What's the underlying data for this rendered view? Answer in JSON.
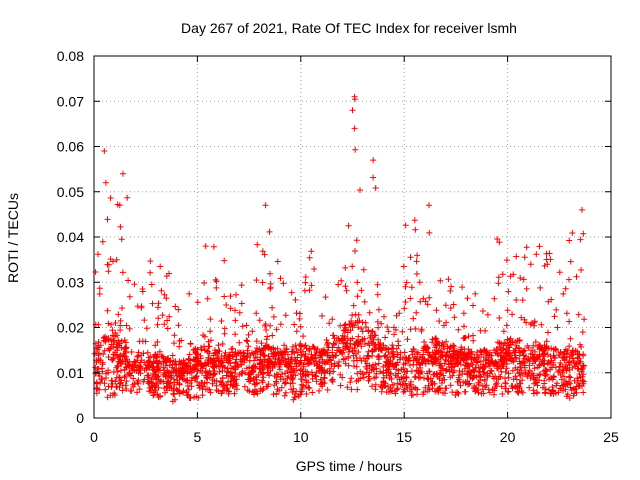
{
  "chart_data": {
    "type": "scatter",
    "title": "Day 267 of 2021, Rate Of TEC Index for receiver lsmh",
    "xlabel": "GPS time / hours",
    "ylabel": "ROTI / TECUs",
    "xlim": [
      0,
      25
    ],
    "ylim": [
      0,
      0.08
    ],
    "xticks": [
      0,
      5,
      10,
      15,
      20,
      25
    ],
    "xtick_labels": [
      "0",
      "5",
      "10",
      "15",
      "20",
      "25"
    ],
    "yticks": [
      0,
      0.01,
      0.02,
      0.03,
      0.04,
      0.05,
      0.06,
      0.07,
      0.08
    ],
    "ytick_labels": [
      "0",
      "0.01",
      "0.02",
      "0.03",
      "0.04",
      "0.05",
      "0.06",
      "0.07",
      "0.08"
    ],
    "grid": true,
    "marker": "+",
    "color": "#ff0000",
    "data_extent_hours": [
      0,
      23.7
    ],
    "envelope": {
      "description_hours": [
        0,
        0.5,
        1.0,
        1.5,
        2.0,
        2.8,
        3.5,
        4.2,
        4.8,
        5.5,
        6.5,
        7.5,
        8.3,
        9.0,
        9.7,
        10.3,
        11.0,
        11.8,
        12.3,
        12.6,
        13.0,
        13.6,
        14.2,
        15.0,
        16.0,
        16.5,
        17.5,
        18.5,
        19.5,
        20.0,
        21.0,
        22.0,
        22.5,
        23.0,
        23.7
      ],
      "lower": [
        0.005,
        0.004,
        0.004,
        0.005,
        0.005,
        0.005,
        0.004,
        0.003,
        0.004,
        0.005,
        0.005,
        0.005,
        0.005,
        0.004,
        0.004,
        0.005,
        0.006,
        0.006,
        0.006,
        0.006,
        0.006,
        0.006,
        0.005,
        0.005,
        0.005,
        0.005,
        0.005,
        0.005,
        0.005,
        0.005,
        0.005,
        0.005,
        0.004,
        0.004,
        0.005
      ],
      "typical": [
        0.012,
        0.013,
        0.014,
        0.012,
        0.011,
        0.011,
        0.01,
        0.009,
        0.011,
        0.012,
        0.011,
        0.011,
        0.012,
        0.011,
        0.012,
        0.012,
        0.012,
        0.014,
        0.016,
        0.017,
        0.016,
        0.014,
        0.012,
        0.011,
        0.012,
        0.013,
        0.012,
        0.011,
        0.012,
        0.013,
        0.012,
        0.012,
        0.011,
        0.011,
        0.011
      ],
      "upper": [
        0.03,
        0.059,
        0.045,
        0.054,
        0.03,
        0.036,
        0.036,
        0.032,
        0.04,
        0.04,
        0.035,
        0.034,
        0.047,
        0.04,
        0.044,
        0.04,
        0.03,
        0.035,
        0.055,
        0.071,
        0.058,
        0.057,
        0.035,
        0.045,
        0.047,
        0.034,
        0.03,
        0.03,
        0.043,
        0.038,
        0.042,
        0.036,
        0.045,
        0.04,
        0.046
      ]
    }
  }
}
